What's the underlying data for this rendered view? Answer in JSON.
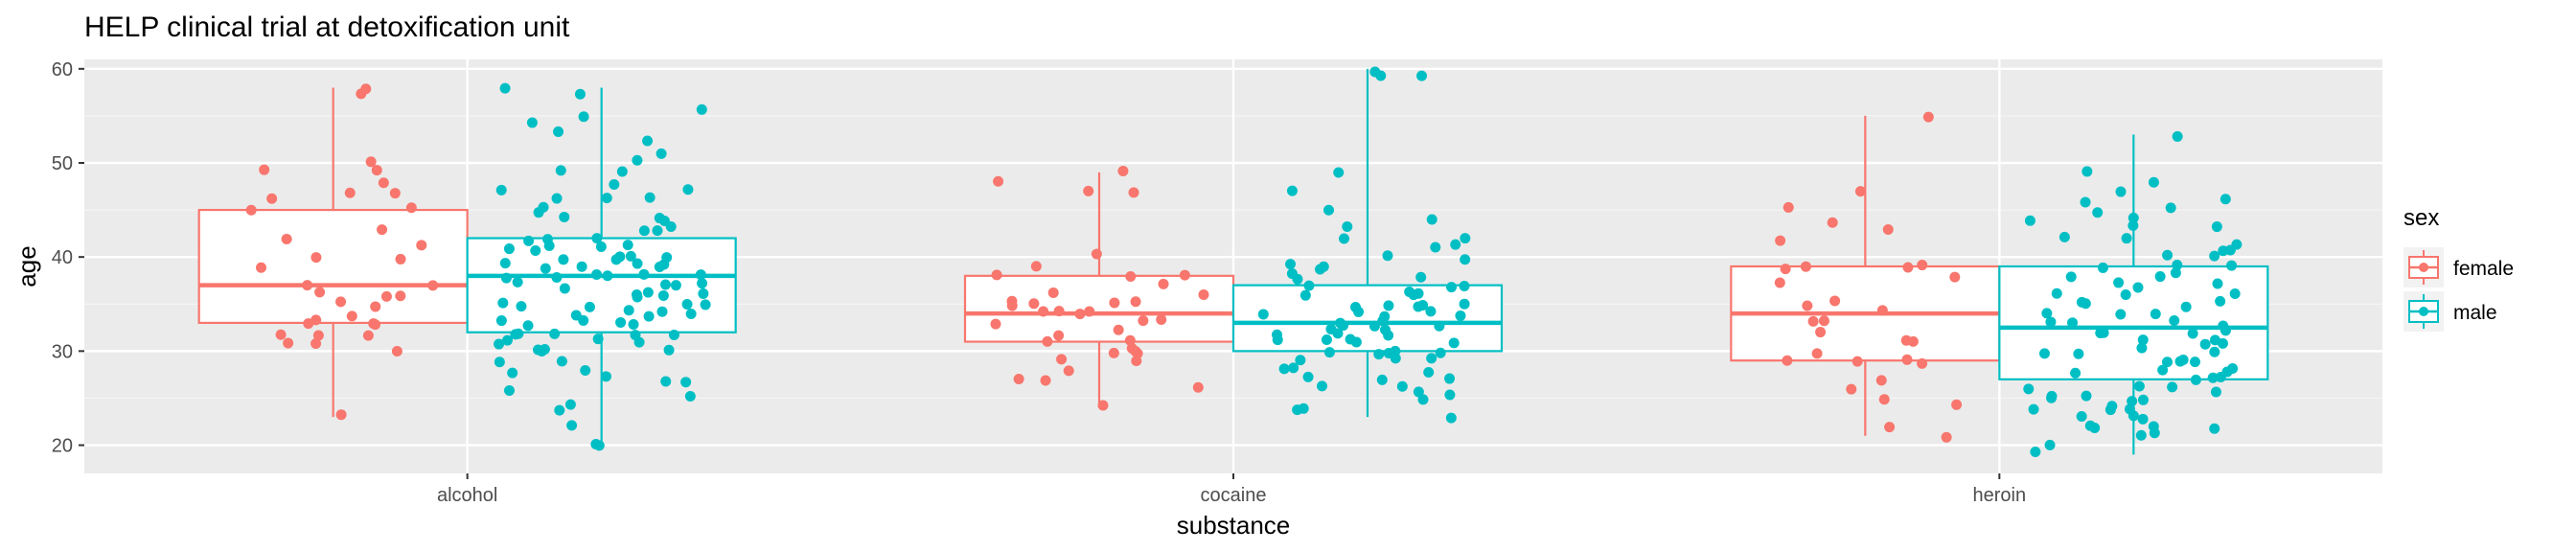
{
  "chart_data": {
    "type": "boxplot",
    "title": "HELP clinical trial at detoxification unit",
    "xlabel": "substance",
    "ylabel": "age",
    "categories": [
      "alcohol",
      "cocaine",
      "heroin"
    ],
    "ylim": [
      17,
      61
    ],
    "yticks": [
      20,
      30,
      40,
      50,
      60
    ],
    "grid": true,
    "legend": {
      "title": "sex",
      "position": "right"
    },
    "series": [
      {
        "name": "female",
        "color": "#F8766D",
        "boxes": [
          {
            "category": "alcohol",
            "min": 23,
            "q1": 33,
            "median": 37,
            "q3": 45,
            "max": 58,
            "points": [
              58,
              57,
              50,
              49,
              49,
              48,
              47,
              47,
              46,
              45,
              45,
              43,
              42,
              41,
              40,
              40,
              39,
              37,
              37,
              36,
              36,
              36,
              35,
              35,
              34,
              33,
              33,
              33,
              33,
              32,
              32,
              32,
              31,
              31,
              30,
              23
            ]
          },
          {
            "category": "cocaine",
            "min": 24,
            "q1": 31,
            "median": 34,
            "q3": 38,
            "max": 49,
            "points": [
              49,
              48,
              47,
              47,
              40,
              39,
              38,
              38,
              38,
              37,
              36,
              36,
              35,
              35,
              35,
              35,
              35,
              34,
              34,
              34,
              34,
              33,
              33,
              33,
              32,
              32,
              31,
              31,
              30,
              30,
              30,
              30,
              29,
              29,
              28,
              27,
              27,
              26,
              24
            ]
          },
          {
            "category": "heroin",
            "min": 21,
            "q1": 29,
            "median": 34,
            "q3": 39,
            "max": 55,
            "points": [
              55,
              47,
              45,
              44,
              43,
              42,
              39,
              39,
              39,
              39,
              38,
              37,
              35,
              35,
              34,
              33,
              33,
              32,
              31,
              31,
              30,
              29,
              29,
              29,
              29,
              27,
              26,
              25,
              24,
              22,
              21
            ]
          }
        ]
      },
      {
        "name": "male",
        "color": "#00BFC4",
        "boxes": [
          {
            "category": "alcohol",
            "min": 20,
            "q1": 32,
            "median": 38,
            "q3": 42,
            "max": 58,
            "points": [
              58,
              57,
              56,
              55,
              54,
              53,
              52,
              51,
              50,
              49,
              49,
              48,
              47,
              47,
              46,
              46,
              46,
              45,
              45,
              44,
              44,
              44,
              43,
              43,
              43,
              42,
              42,
              42,
              41,
              41,
              41,
              41,
              41,
              40,
              40,
              40,
              40,
              40,
              39,
              39,
              39,
              39,
              39,
              39,
              38,
              38,
              38,
              38,
              38,
              38,
              37,
              37,
              37,
              37,
              37,
              36,
              36,
              36,
              36,
              36,
              35,
              35,
              35,
              35,
              35,
              34,
              34,
              34,
              34,
              34,
              33,
              33,
              33,
              33,
              33,
              32,
              32,
              32,
              32,
              32,
              31,
              31,
              31,
              31,
              30,
              30,
              30,
              30,
              29,
              29,
              28,
              28,
              27,
              27,
              27,
              26,
              25,
              24,
              24,
              22,
              20,
              20
            ]
          },
          {
            "category": "cocaine",
            "min": 23,
            "q1": 30,
            "median": 33,
            "q3": 37,
            "max": 60,
            "points": [
              60,
              59,
              59,
              49,
              47,
              45,
              44,
              43,
              42,
              42,
              41,
              41,
              40,
              40,
              39,
              39,
              39,
              38,
              38,
              38,
              37,
              37,
              37,
              36,
              36,
              36,
              36,
              35,
              35,
              35,
              35,
              35,
              34,
              34,
              34,
              34,
              34,
              33,
              33,
              33,
              33,
              33,
              32,
              32,
              32,
              32,
              32,
              31,
              31,
              31,
              31,
              31,
              30,
              30,
              30,
              30,
              30,
              29,
              29,
              29,
              28,
              28,
              28,
              27,
              27,
              27,
              26,
              26,
              26,
              25,
              25,
              24,
              24,
              23
            ]
          },
          {
            "category": "heroin",
            "min": 19,
            "q1": 27,
            "median": 32.5,
            "q3": 39,
            "max": 53,
            "points": [
              53,
              49,
              48,
              47,
              46,
              46,
              45,
              45,
              44,
              44,
              43,
              43,
              42,
              42,
              41,
              41,
              41,
              40,
              40,
              39,
              39,
              39,
              38,
              38,
              38,
              37,
              37,
              37,
              36,
              36,
              36,
              35,
              35,
              35,
              35,
              34,
              34,
              34,
              33,
              33,
              33,
              33,
              32,
              32,
              32,
              32,
              31,
              31,
              31,
              31,
              30,
              30,
              30,
              30,
              29,
              29,
              29,
              29,
              28,
              28,
              28,
              28,
              27,
              27,
              27,
              26,
              26,
              26,
              26,
              25,
              25,
              25,
              25,
              25,
              24,
              24,
              24,
              24,
              23,
              23,
              23,
              22,
              22,
              22,
              22,
              21,
              21,
              20,
              19
            ]
          }
        ]
      }
    ]
  }
}
